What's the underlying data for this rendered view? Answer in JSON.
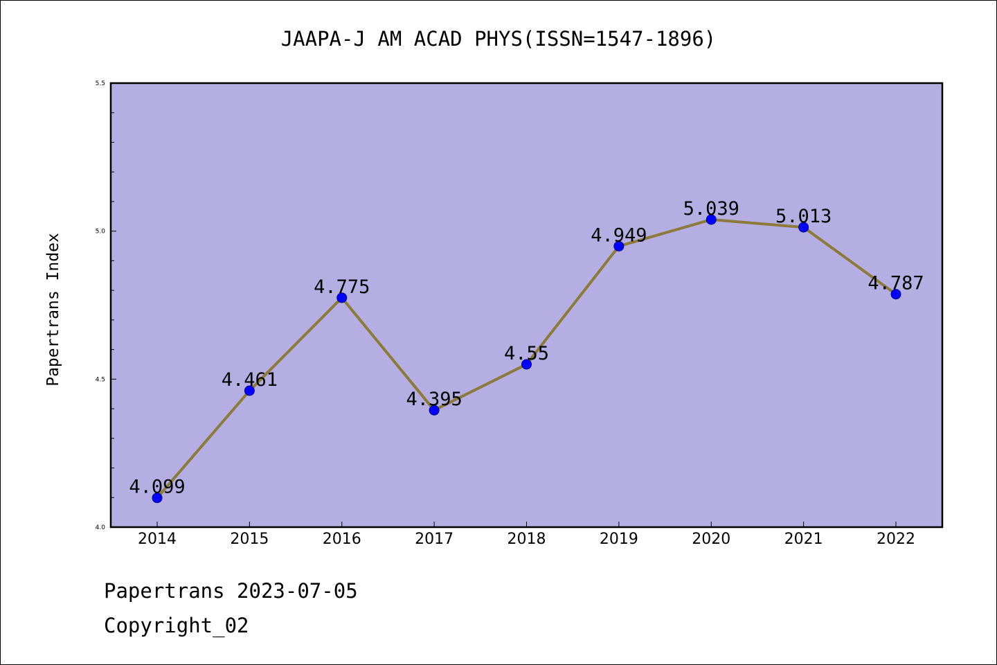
{
  "chart_data": {
    "type": "line",
    "title": "JAAPA-J AM ACAD PHYS(ISSN=1547-1896)",
    "xlabel": "",
    "ylabel": "Papertrans Index",
    "categories": [
      "2014",
      "2015",
      "2016",
      "2017",
      "2018",
      "2019",
      "2020",
      "2021",
      "2022"
    ],
    "series": [
      {
        "values": [
          4.099,
          4.461,
          4.775,
          4.395,
          4.55,
          4.949,
          5.039,
          5.013,
          4.787
        ],
        "data_labels": [
          "4.099",
          "4.461",
          "4.775",
          "4.395",
          "4.55",
          "4.949",
          "5.039",
          "5.013",
          "4.787"
        ],
        "line_color": "#8b7a3c",
        "marker_color": "#0000ff"
      }
    ],
    "ylim": [
      4.0,
      5.5
    ],
    "yticks": [
      "4.0",
      "4.5",
      "5.0",
      "5.5"
    ],
    "grid": false,
    "legend": "none",
    "plot_background": "#b5aee2"
  },
  "footer": {
    "line1": "Papertrans 2023-07-05",
    "line2": "Copyright_02"
  }
}
